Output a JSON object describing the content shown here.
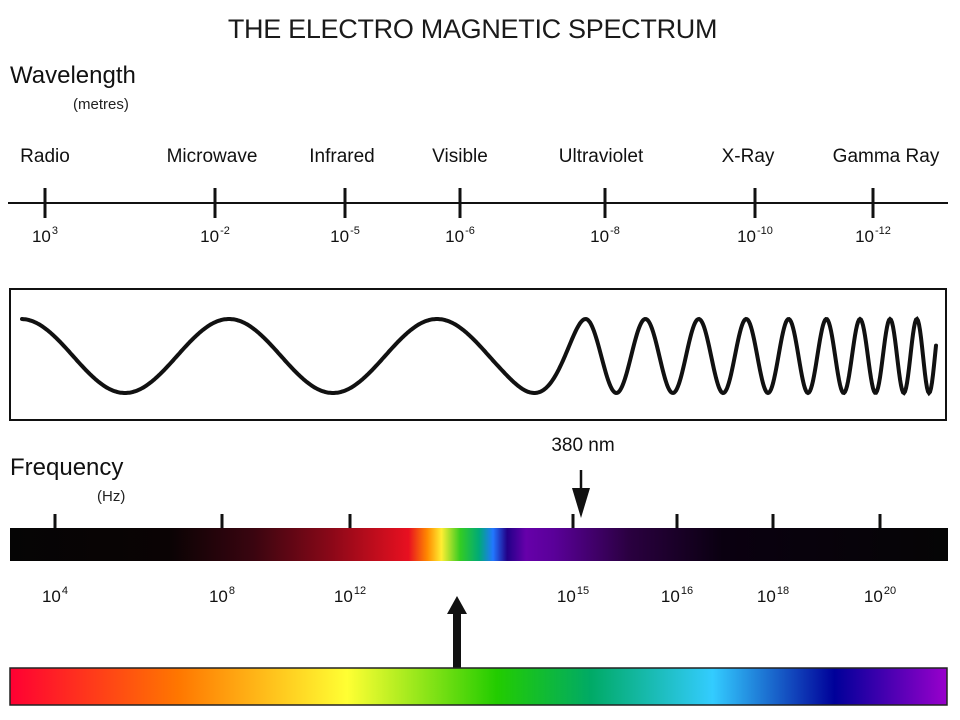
{
  "title": "THE ELECTRO MAGNETIC SPECTRUM",
  "wavelength": {
    "label": "Wavelength",
    "unit": "(metres)",
    "bands": [
      {
        "name": "Radio",
        "base": "10",
        "exp": "3"
      },
      {
        "name": "Microwave",
        "base": "10",
        "exp": "-2"
      },
      {
        "name": "Infrared",
        "base": "10",
        "exp": "-5"
      },
      {
        "name": "Visible",
        "base": "10",
        "exp": "-6"
      },
      {
        "name": "Ultraviolet",
        "base": "10",
        "exp": "-8"
      },
      {
        "name": "X-Ray",
        "base": "10",
        "exp": "-10"
      },
      {
        "name": "Gamma Ray",
        "base": "10",
        "exp": "-12"
      }
    ]
  },
  "frequency": {
    "label": "Frequency",
    "unit": "(Hz)",
    "ticks": [
      {
        "base": "10",
        "exp": "4"
      },
      {
        "base": "10",
        "exp": "8"
      },
      {
        "base": "10",
        "exp": "12"
      },
      {
        "base": "10",
        "exp": "15"
      },
      {
        "base": "10",
        "exp": "16"
      },
      {
        "base": "10",
        "exp": "18"
      },
      {
        "base": "10",
        "exp": "20"
      }
    ]
  },
  "marker": {
    "label": "380 nm"
  },
  "colors": {
    "line": "#111111",
    "bar_base": "#050505",
    "visible_spectrum": [
      "#ff0033",
      "#ff8800",
      "#ffff33",
      "#33cc00",
      "#00aa66",
      "#33ccff",
      "#000099",
      "#9900cc"
    ]
  }
}
